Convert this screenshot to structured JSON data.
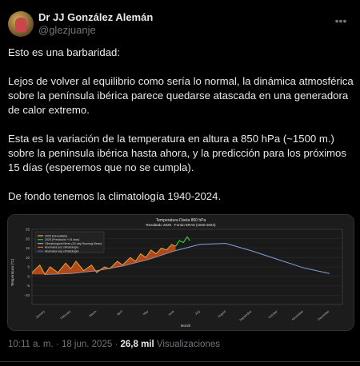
{
  "author": {
    "display_name": "Dr JJ González Alemán",
    "handle": "@glezjuanje"
  },
  "tweet": {
    "paragraphs": [
      "Esto es una barbaridad:",
      "Lejos de volver al equilibrio como sería lo normal, la dinámica atmosférica sobre la península ibérica parece quedarse atascada en una generadora de calor extremo.",
      "Esta es la variación de la temperatura en altura a 850 hPa (~1500 m.) sobre la península ibérica hasta ahora, y la predicción para los próximos 15 días (esperemos que no se cumpla).",
      "De fondo tenemos la climatología 1940-2024."
    ]
  },
  "meta": {
    "time": "10:11 a. m.",
    "separator": "·",
    "date": "18 jun. 2025",
    "views_count": "26,8 mil",
    "views_label": "Visualizaciones"
  },
  "chart_data": {
    "type": "line",
    "title": "Temperatura Diaria 850 hPa",
    "subtitle": "Resultado 2025 - Fondo ERA5 (1940-2024)",
    "ylabel": "Temperatura (ºC)",
    "xlabel": "Month",
    "ylim": [
      -15,
      25
    ],
    "yticks": [
      -10,
      -5,
      0,
      5,
      10,
      15,
      20,
      25
    ],
    "months": [
      "January",
      "February",
      "March",
      "April",
      "May",
      "June",
      "July",
      "August",
      "September",
      "October",
      "November",
      "December"
    ],
    "legend": [
      "2025 (Reanálisis)",
      "2025 (Predicción +15 días)",
      "Climatological Mean (15-day Running Mean)",
      "Anomalía pos climatología",
      "Anomalía neg climatología"
    ],
    "colors": {
      "observed": "#e8a33a",
      "forecast": "#2ecc40",
      "climatology": "#7ea3d9",
      "anomaly_pos": "#e25a1c",
      "anomaly_neg": "#3a6fd6",
      "background_years": "#8c8c8c"
    },
    "climatology_mean": [
      1,
      1.5,
      3,
      5.5,
      9,
      13.5,
      17,
      17.5,
      13.5,
      9,
      4.5,
      1.5
    ],
    "series_2025_observed": [
      {
        "x": 0,
        "y": 2
      },
      {
        "x": 0.3,
        "y": 6
      },
      {
        "x": 0.5,
        "y": 1
      },
      {
        "x": 0.7,
        "y": 5
      },
      {
        "x": 1.0,
        "y": 2
      },
      {
        "x": 1.3,
        "y": 7
      },
      {
        "x": 1.5,
        "y": 4
      },
      {
        "x": 1.7,
        "y": 8
      },
      {
        "x": 2.0,
        "y": 3
      },
      {
        "x": 2.3,
        "y": 6
      },
      {
        "x": 2.5,
        "y": 2
      },
      {
        "x": 2.8,
        "y": 5
      },
      {
        "x": 3.0,
        "y": 4
      },
      {
        "x": 3.3,
        "y": 8
      },
      {
        "x": 3.5,
        "y": 6
      },
      {
        "x": 3.8,
        "y": 10
      },
      {
        "x": 4.0,
        "y": 8
      },
      {
        "x": 4.2,
        "y": 12
      },
      {
        "x": 4.4,
        "y": 10
      },
      {
        "x": 4.6,
        "y": 14
      },
      {
        "x": 4.8,
        "y": 12
      },
      {
        "x": 5.0,
        "y": 15
      },
      {
        "x": 5.2,
        "y": 14
      },
      {
        "x": 5.4,
        "y": 17
      },
      {
        "x": 5.55,
        "y": 16
      }
    ],
    "series_2025_forecast": [
      {
        "x": 5.55,
        "y": 16
      },
      {
        "x": 5.7,
        "y": 19
      },
      {
        "x": 5.85,
        "y": 18
      },
      {
        "x": 6.0,
        "y": 21
      },
      {
        "x": 6.1,
        "y": 19
      }
    ]
  }
}
